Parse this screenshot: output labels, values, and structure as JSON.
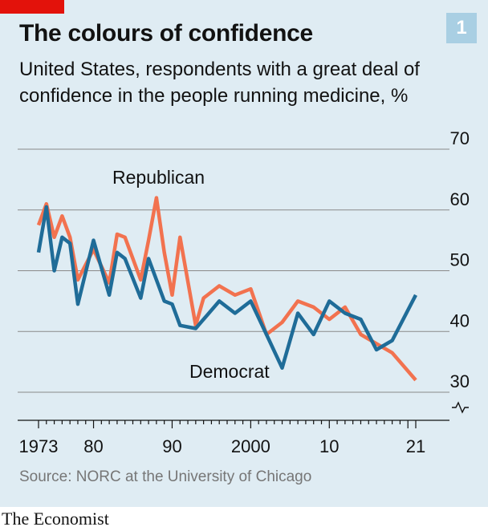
{
  "header": {
    "title": "The colours of confidence",
    "badge": "1",
    "subtitle": "United States, respondents with a great deal of confidence in the people running medicine, %"
  },
  "footer": {
    "source": "Source: NORC at the University of Chicago",
    "logo": "The Economist"
  },
  "colors": {
    "republican": "#f2724f",
    "democrat": "#1f6c98",
    "grid": "#8a8a8a",
    "axis": "#121212"
  },
  "chart_data": {
    "type": "line",
    "title": "The colours of confidence",
    "subtitle": "United States, respondents with a great deal of confidence in the people running medicine, %",
    "ylim": [
      30,
      70
    ],
    "xlim": [
      1973,
      2021
    ],
    "yticks": [
      30,
      40,
      50,
      60,
      70
    ],
    "ytick_labels": [
      "30",
      "40",
      "50",
      "60",
      "70"
    ],
    "xticks": [
      1973,
      1980,
      1990,
      2000,
      2010,
      2021
    ],
    "xtick_labels": [
      "1973",
      "80",
      "90",
      "2000",
      "10",
      "21"
    ],
    "grid": true,
    "axis_break": true,
    "series": [
      {
        "name": "Republican",
        "x": [
          1973,
          1974,
          1975,
          1976,
          1977,
          1978,
          1980,
          1982,
          1983,
          1984,
          1986,
          1987,
          1988,
          1989,
          1990,
          1991,
          1993,
          1994,
          1996,
          1998,
          2000,
          2002,
          2004,
          2006,
          2008,
          2010,
          2012,
          2014,
          2016,
          2018,
          2021
        ],
        "values": [
          57.5,
          61.0,
          55.5,
          59.0,
          55.5,
          48.5,
          53.5,
          48.0,
          56.0,
          55.5,
          48.5,
          55.0,
          62.0,
          53.0,
          46.0,
          55.5,
          41.0,
          45.5,
          47.5,
          46.0,
          47.0,
          39.5,
          41.5,
          45.0,
          44.0,
          42.0,
          44.0,
          39.5,
          38.0,
          36.5,
          32.0
        ]
      },
      {
        "name": "Democrat",
        "x": [
          1973,
          1974,
          1975,
          1976,
          1977,
          1978,
          1980,
          1982,
          1983,
          1984,
          1986,
          1987,
          1988,
          1989,
          1990,
          1991,
          1993,
          1994,
          1996,
          1998,
          2000,
          2002,
          2004,
          2006,
          2008,
          2010,
          2012,
          2014,
          2016,
          2018,
          2021
        ],
        "values": [
          53.0,
          60.5,
          50.0,
          55.5,
          54.5,
          44.5,
          55.0,
          46.0,
          53.0,
          52.0,
          45.5,
          52.0,
          48.5,
          45.0,
          44.5,
          41.0,
          40.5,
          42.0,
          45.0,
          43.0,
          45.0,
          39.5,
          34.0,
          43.0,
          39.5,
          45.0,
          43.0,
          42.0,
          37.0,
          38.5,
          46.0
        ]
      }
    ],
    "annotations": [
      {
        "text": "Republican",
        "series": "Republican"
      },
      {
        "text": "Democrat",
        "series": "Democrat"
      }
    ]
  }
}
